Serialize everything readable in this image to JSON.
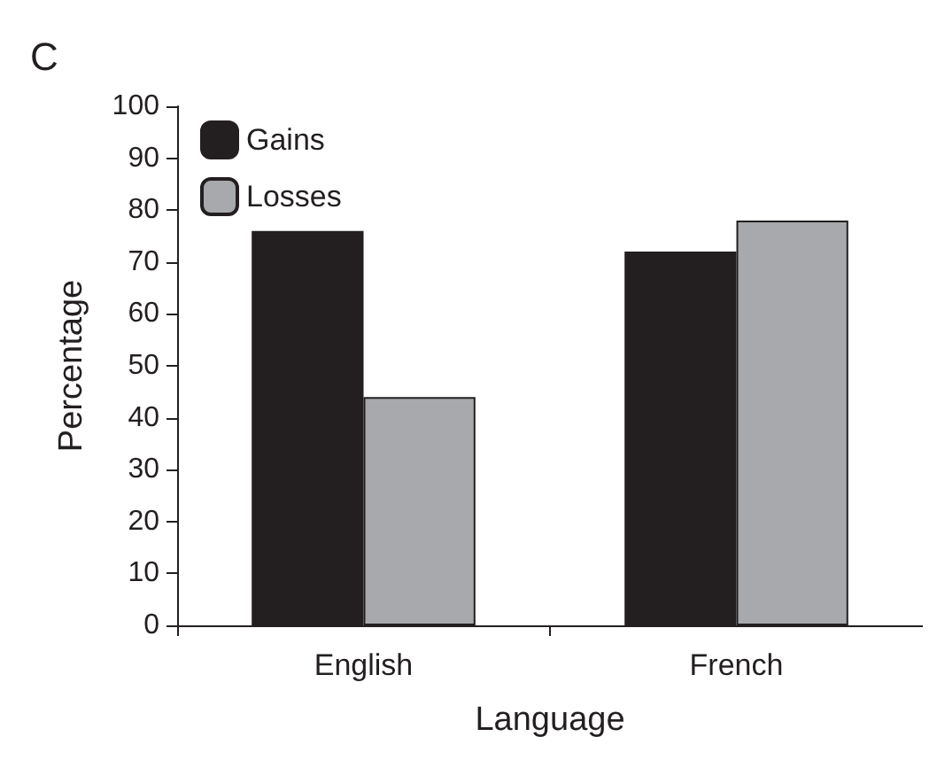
{
  "chart_data": {
    "type": "bar",
    "title": "C",
    "xlabel": "Language",
    "ylabel": "Percentage",
    "categories": [
      "English",
      "French"
    ],
    "series": [
      {
        "name": "Gains",
        "color": "#231f20",
        "values": [
          76,
          72
        ]
      },
      {
        "name": "Losses",
        "color": "#a7a9ac",
        "values": [
          44,
          78
        ]
      }
    ],
    "ylim": [
      0,
      100
    ],
    "yticks": [
      0,
      10,
      20,
      30,
      40,
      50,
      60,
      70,
      80,
      90,
      100
    ],
    "grid": false,
    "legend": "top left"
  }
}
